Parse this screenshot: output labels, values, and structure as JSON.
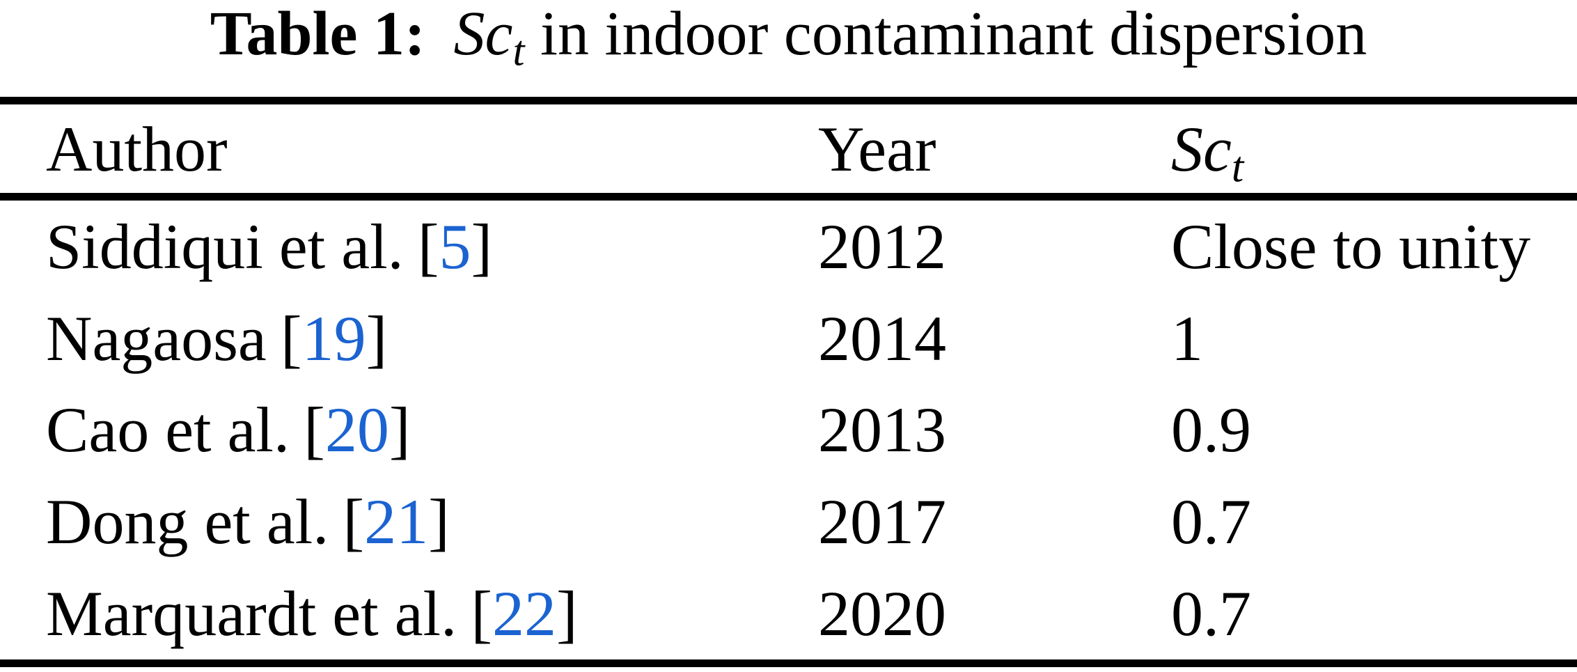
{
  "caption": {
    "label": "Table 1:",
    "var": "Sc",
    "var_sub": "t",
    "rest": "in indoor contaminant dispersion"
  },
  "header": {
    "author": "Author",
    "year": "Year",
    "sct_var": "Sc",
    "sct_sub": "t"
  },
  "rows": [
    {
      "author": "Siddiqui et al.",
      "open": "[",
      "cite": "5",
      "close": "]",
      "year": "2012",
      "sct": "Close to unity"
    },
    {
      "author": "Nagaosa",
      "open": "[",
      "cite": "19",
      "close": "]",
      "year": "2014",
      "sct": "1"
    },
    {
      "author": "Cao et al.",
      "open": "[",
      "cite": "20",
      "close": "]",
      "year": "2013",
      "sct": "0.9"
    },
    {
      "author": "Dong et al.",
      "open": "[",
      "cite": "21",
      "close": "]",
      "year": "2017",
      "sct": "0.7"
    },
    {
      "author": "Marquardt et al.",
      "open": "[",
      "cite": "22",
      "close": "]",
      "year": "2020",
      "sct": "0.7"
    }
  ],
  "colors": {
    "link": "#1b63d1",
    "text": "#000000",
    "background": "#ffffff",
    "rule": "#000000"
  }
}
